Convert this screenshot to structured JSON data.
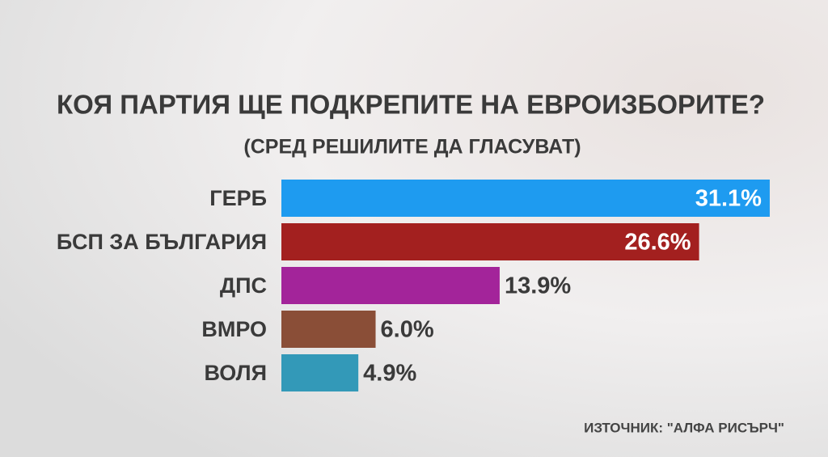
{
  "chart_data": {
    "type": "bar",
    "orientation": "horizontal",
    "title": "КОЯ ПАРТИЯ ЩЕ ПОДКРЕПИТЕ НА ЕВРОИЗБОРИТЕ?",
    "subtitle": "(СРЕД РЕШИЛИТЕ ДА ГЛАСУВАТ)",
    "categories": [
      "ГЕРБ",
      "БСП ЗА БЪЛГАРИЯ",
      "ДПС",
      "ВМРО",
      "ВОЛЯ"
    ],
    "values": [
      31.1,
      26.6,
      13.9,
      6.0,
      4.9
    ],
    "value_labels": [
      "31.1%",
      "26.6%",
      "13.9%",
      "6.0%",
      "4.9%"
    ],
    "colors": [
      "#1e9bf0",
      "#a3201f",
      "#a3249a",
      "#8a4e37",
      "#3399b8"
    ],
    "source": "ИЗТОЧНИК: \"АЛФА РИСЪРЧ\""
  }
}
